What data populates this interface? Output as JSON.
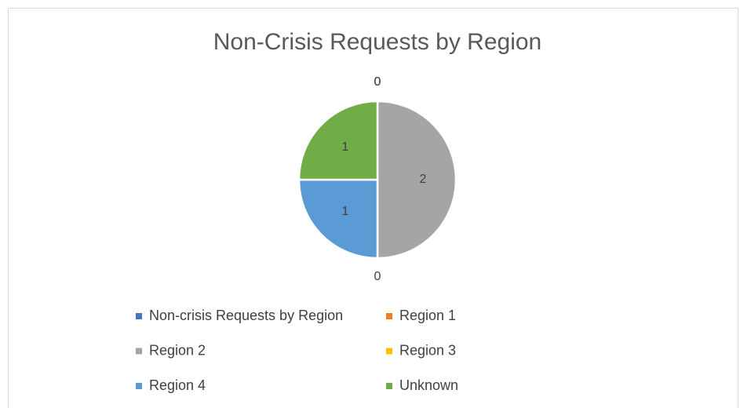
{
  "chart_data": {
    "type": "pie",
    "title": "Non-Crisis Requests by Region",
    "categories": [
      "Non-crisis Requests by Region",
      "Region 1",
      "Region 2",
      "Region 3",
      "Region 4",
      "Unknown"
    ],
    "values": [
      0,
      0,
      2,
      0,
      1,
      1
    ],
    "colors": [
      "#4472c4",
      "#ed7d31",
      "#a5a5a5",
      "#ffc000",
      "#5b9bd5",
      "#70ad47"
    ],
    "legend": "bottom"
  }
}
